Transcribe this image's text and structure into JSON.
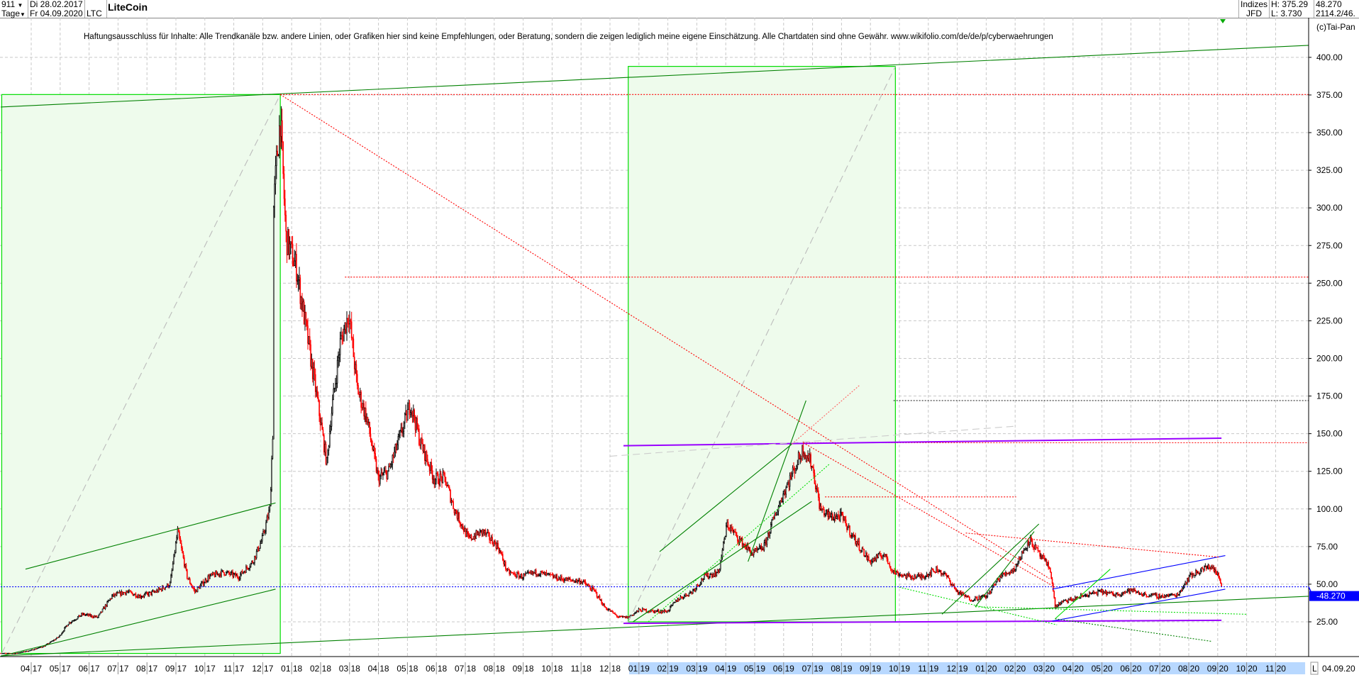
{
  "header": {
    "count": "911",
    "count_dropdown_icon": "triangle-down-icon",
    "period": "Tage",
    "period_dropdown_icon": "triangle-down-icon",
    "date_from": "Di 28.02.2017",
    "date_to": "Fr 04.09.2020",
    "symbol": "LTC",
    "title": "LiteCoin",
    "market": "Indizes",
    "source": "JFD",
    "high": "H: 375.29",
    "low": "L: 3.730",
    "last": "48.270",
    "extra": "2114.2/46.",
    "copyright": "(c)Tai-Pan"
  },
  "disclaimer": "Haftungsausschluss für Inhalte: Alle Trendkanäle bzw. andere Linien, oder Grafiken hier sind keine Empfehlungen, oder Beratung, sondern die zeigen lediglich meine eigene Einschätzung. Alle Chartdaten sind ohne Gewähr.  www.wikifolio.com/de/de/p/cyberwaehrungen",
  "axis_footer": {
    "l_button": "L",
    "last_date": "04.09.20"
  },
  "colors": {
    "up": "#000000",
    "down": "#ff0000",
    "box_fill": "#eefbec",
    "box_stroke": "#00dd00",
    "trend_green": "#008000",
    "lime": "#00e000",
    "purple": "#9900ff",
    "blue": "#0000ff",
    "red_dotted": "#ff0000",
    "last_price_bg": "#0000ff",
    "axis_band": "#b8d8ff"
  },
  "chart_data": {
    "type": "candlestick",
    "title": "LiteCoin",
    "ylim": [
      0,
      410
    ],
    "yticks": [
      "25.00",
      "50.00",
      "75.00",
      "100.00",
      "125.00",
      "150.00",
      "175.00",
      "200.00",
      "225.00",
      "250.00",
      "275.00",
      "300.00",
      "325.00",
      "350.00",
      "375.00",
      "400.00"
    ],
    "xticks": [
      "04 17",
      "05 17",
      "06 17",
      "07 17",
      "08 17",
      "09 17",
      "10 17",
      "11 17",
      "12 17",
      "01 18",
      "02 18",
      "03 18",
      "04 18",
      "05 18",
      "06 18",
      "07 18",
      "08 18",
      "09 18",
      "10 18",
      "11 18",
      "12 18",
      "01 19",
      "02 19",
      "03 19",
      "04 19",
      "05 19",
      "06 19",
      "07 19",
      "08 19",
      "09 19",
      "10 19",
      "11 19",
      "12 19",
      "01 20",
      "02 20",
      "03 20",
      "04 20",
      "05 20",
      "06 20",
      "07 20",
      "08 20",
      "09 20",
      "10 20",
      "11 20"
    ],
    "grid": true,
    "last_price_label": "48.270",
    "price_path": [
      [
        "2017-02-28",
        4.2
      ],
      [
        "2017-03-15",
        4
      ],
      [
        "2017-03-31",
        6
      ],
      [
        "2017-04-15",
        9
      ],
      [
        "2017-04-30",
        15
      ],
      [
        "2017-05-10",
        24
      ],
      [
        "2017-05-25",
        30
      ],
      [
        "2017-06-10",
        28
      ],
      [
        "2017-06-25",
        42
      ],
      [
        "2017-07-10",
        45
      ],
      [
        "2017-07-25",
        42
      ],
      [
        "2017-08-10",
        45
      ],
      [
        "2017-08-25",
        50
      ],
      [
        "2017-09-02",
        85
      ],
      [
        "2017-09-12",
        55
      ],
      [
        "2017-09-20",
        45
      ],
      [
        "2017-10-05",
        55
      ],
      [
        "2017-10-20",
        58
      ],
      [
        "2017-11-05",
        55
      ],
      [
        "2017-11-20",
        65
      ],
      [
        "2017-11-30",
        80
      ],
      [
        "2017-12-08",
        100
      ],
      [
        "2017-12-11",
        150
      ],
      [
        "2017-12-12",
        300
      ],
      [
        "2017-12-15",
        330
      ],
      [
        "2017-12-19",
        360
      ],
      [
        "2017-12-25",
        280
      ],
      [
        "2018-01-05",
        260
      ],
      [
        "2018-01-15",
        220
      ],
      [
        "2018-01-25",
        180
      ],
      [
        "2018-02-06",
        130
      ],
      [
        "2018-02-10",
        160
      ],
      [
        "2018-02-20",
        210
      ],
      [
        "2018-03-01",
        230
      ],
      [
        "2018-03-10",
        180
      ],
      [
        "2018-03-20",
        160
      ],
      [
        "2018-04-01",
        120
      ],
      [
        "2018-04-12",
        125
      ],
      [
        "2018-04-25",
        150
      ],
      [
        "2018-05-05",
        170
      ],
      [
        "2018-05-15",
        145
      ],
      [
        "2018-05-30",
        120
      ],
      [
        "2018-06-10",
        120
      ],
      [
        "2018-06-20",
        100
      ],
      [
        "2018-07-05",
        80
      ],
      [
        "2018-07-20",
        85
      ],
      [
        "2018-08-05",
        75
      ],
      [
        "2018-08-15",
        58
      ],
      [
        "2018-08-30",
        55
      ],
      [
        "2018-09-15",
        58
      ],
      [
        "2018-10-01",
        55
      ],
      [
        "2018-10-15",
        53
      ],
      [
        "2018-11-01",
        52
      ],
      [
        "2018-11-15",
        45
      ],
      [
        "2018-11-25",
        35
      ],
      [
        "2018-12-10",
        28
      ],
      [
        "2018-12-20",
        28
      ],
      [
        "2019-01-01",
        33
      ],
      [
        "2019-01-15",
        32
      ],
      [
        "2019-01-30",
        32
      ],
      [
        "2019-02-10",
        40
      ],
      [
        "2019-02-25",
        45
      ],
      [
        "2019-03-10",
        55
      ],
      [
        "2019-03-25",
        58
      ],
      [
        "2019-04-03",
        90
      ],
      [
        "2019-04-15",
        80
      ],
      [
        "2019-04-30",
        70
      ],
      [
        "2019-05-12",
        75
      ],
      [
        "2019-05-20",
        90
      ],
      [
        "2019-06-01",
        110
      ],
      [
        "2019-06-15",
        130
      ],
      [
        "2019-06-22",
        140
      ],
      [
        "2019-07-01",
        130
      ],
      [
        "2019-07-10",
        100
      ],
      [
        "2019-07-20",
        95
      ],
      [
        "2019-08-01",
        95
      ],
      [
        "2019-08-15",
        80
      ],
      [
        "2019-08-31",
        65
      ],
      [
        "2019-09-15",
        70
      ],
      [
        "2019-09-25",
        58
      ],
      [
        "2019-10-10",
        55
      ],
      [
        "2019-10-25",
        55
      ],
      [
        "2019-11-10",
        60
      ],
      [
        "2019-11-20",
        55
      ],
      [
        "2019-12-01",
        45
      ],
      [
        "2019-12-15",
        40
      ],
      [
        "2020-01-01",
        42
      ],
      [
        "2020-01-15",
        55
      ],
      [
        "2020-01-30",
        60
      ],
      [
        "2020-02-15",
        80
      ],
      [
        "2020-02-25",
        70
      ],
      [
        "2020-03-08",
        60
      ],
      [
        "2020-03-13",
        35
      ],
      [
        "2020-03-20",
        38
      ],
      [
        "2020-04-01",
        40
      ],
      [
        "2020-04-15",
        43
      ],
      [
        "2020-05-01",
        45
      ],
      [
        "2020-05-15",
        43
      ],
      [
        "2020-06-01",
        46
      ],
      [
        "2020-06-15",
        43
      ],
      [
        "2020-07-01",
        42
      ],
      [
        "2020-07-20",
        43
      ],
      [
        "2020-08-01",
        55
      ],
      [
        "2020-08-15",
        60
      ],
      [
        "2020-08-25",
        62
      ],
      [
        "2020-09-01",
        55
      ],
      [
        "2020-09-04",
        48.27
      ]
    ],
    "drawings": [
      {
        "kind": "box",
        "from": [
          "2017-03-01",
          4
        ],
        "to": [
          "2017-12-19",
          375.29
        ]
      },
      {
        "kind": "box",
        "from": [
          "2018-12-20",
          25
        ],
        "to": [
          "2019-09-27",
          394
        ]
      },
      {
        "kind": "line",
        "style": "dashed",
        "color": "#bbbbbb",
        "from": [
          "2017-03-01",
          4
        ],
        "to": [
          "2017-12-19",
          375.29
        ]
      },
      {
        "kind": "line",
        "style": "dashed",
        "color": "#bbbbbb",
        "from": [
          "2018-12-20",
          25
        ],
        "to": [
          "2019-09-27",
          394
        ]
      },
      {
        "kind": "line",
        "style": "solid",
        "color": "#008000",
        "from": [
          "2017-02-28",
          367
        ],
        "to": [
          "2020-12-05",
          408
        ]
      },
      {
        "kind": "line",
        "style": "solid",
        "color": "#008000",
        "from": [
          "2017-02-28",
          2.4
        ],
        "to": [
          "2020-12-05",
          42
        ]
      },
      {
        "kind": "line",
        "style": "dotted",
        "color": "#ff0000",
        "from": [
          "2017-12-19",
          375.29
        ],
        "to": [
          "2020-12-05",
          375.29
        ]
      },
      {
        "kind": "line",
        "style": "dotted",
        "color": "#ff0000",
        "from": [
          "2017-12-19",
          375.29
        ],
        "to": [
          "2020-03-07",
          53.7
        ]
      },
      {
        "kind": "line",
        "style": "dotted",
        "color": "#ff0000",
        "from": [
          "2018-02-25",
          254
        ],
        "to": [
          "2020-12-05",
          254
        ]
      },
      {
        "kind": "line",
        "style": "dotted",
        "color": "#333333",
        "from": [
          "2019-09-25",
          172
        ],
        "to": [
          "2020-12-05",
          172
        ]
      },
      {
        "kind": "line",
        "style": "dotted",
        "color": "#ff0000",
        "from": [
          "2019-06-22",
          144
        ],
        "to": [
          "2020-12-05",
          144
        ]
      },
      {
        "kind": "line",
        "style": "solid",
        "color": "#9900ff",
        "from": [
          "2018-12-15",
          142
        ],
        "to": [
          "2020-09-04",
          147
        ]
      },
      {
        "kind": "line",
        "style": "solid",
        "color": "#9900ff",
        "from": [
          "2018-12-15",
          24
        ],
        "to": [
          "2020-09-04",
          26
        ]
      },
      {
        "kind": "line",
        "style": "dotted",
        "color": "#0000ff",
        "from": [
          "2017-02-28",
          48.27
        ],
        "to": [
          "2020-12-05",
          48.27
        ]
      },
      {
        "kind": "line",
        "style": "solid",
        "color": "#008000",
        "from": [
          "2017-03-26",
          60
        ],
        "to": [
          "2017-12-14",
          104
        ]
      },
      {
        "kind": "line",
        "style": "solid",
        "color": "#008000",
        "from": [
          "2017-03-01",
          2.4
        ],
        "to": [
          "2017-12-14",
          46.7
        ]
      },
      {
        "kind": "line",
        "style": "solid",
        "color": "#0000ff",
        "from": [
          "2020-03-10",
          46.7
        ],
        "to": [
          "2020-09-08",
          69
        ]
      },
      {
        "kind": "line",
        "style": "solid",
        "color": "#0000ff",
        "from": [
          "2020-03-10",
          25.5
        ],
        "to": [
          "2020-09-08",
          46.7
        ]
      },
      {
        "kind": "line",
        "style": "solid",
        "color": "#008000",
        "from": [
          "2019-01-22",
          71.6
        ],
        "to": [
          "2019-06-10",
          143
        ]
      },
      {
        "kind": "line",
        "style": "solid",
        "color": "#008000",
        "from": [
          "2018-12-25",
          25
        ],
        "to": [
          "2019-07-01",
          105
        ]
      },
      {
        "kind": "line",
        "style": "solid",
        "color": "#008000",
        "from": [
          "2019-04-25",
          65
        ],
        "to": [
          "2019-06-25",
          172
        ]
      },
      {
        "kind": "line",
        "style": "dotted",
        "color": "#00dd00",
        "from": [
          "2019-01-10",
          25
        ],
        "to": [
          "2019-07-20",
          130
        ]
      },
      {
        "kind": "line",
        "style": "dotted",
        "color": "#ff6666",
        "from": [
          "2019-06-10",
          143
        ],
        "to": [
          "2019-08-20",
          182
        ]
      },
      {
        "kind": "line",
        "style": "solid",
        "color": "#008000",
        "from": [
          "2019-11-15",
          30
        ],
        "to": [
          "2020-02-25",
          90
        ]
      },
      {
        "kind": "line",
        "style": "solid",
        "color": "#008000",
        "from": [
          "2019-12-20",
          35
        ],
        "to": [
          "2020-02-20",
          85
        ]
      },
      {
        "kind": "line",
        "style": "dotted",
        "color": "#ff0000",
        "from": [
          "2019-12-10",
          84
        ],
        "to": [
          "2020-09-01",
          68
        ]
      },
      {
        "kind": "line",
        "style": "dotted",
        "color": "#ff0000",
        "from": [
          "2019-07-15",
          108
        ],
        "to": [
          "2020-02-01",
          108
        ]
      },
      {
        "kind": "line",
        "style": "dotted",
        "color": "#ff0000",
        "from": [
          "2019-06-22",
          144
        ],
        "to": [
          "2020-03-13",
          48
        ]
      },
      {
        "kind": "line",
        "style": "dotted",
        "color": "#00dd00",
        "from": [
          "2019-10-01",
          48
        ],
        "to": [
          "2020-03-15",
          23
        ]
      },
      {
        "kind": "line",
        "style": "dotted",
        "color": "#00dd00",
        "from": [
          "2019-12-20",
          35
        ],
        "to": [
          "2020-10-01",
          30
        ]
      },
      {
        "kind": "line",
        "style": "solid",
        "color": "#00dd00",
        "from": [
          "2020-03-13",
          27
        ],
        "to": [
          "2020-05-10",
          60
        ]
      },
      {
        "kind": "line",
        "style": "dotted",
        "color": "#008000",
        "from": [
          "2020-03-13",
          27
        ],
        "to": [
          "2020-08-25",
          12
        ]
      },
      {
        "kind": "line",
        "style": "dashed",
        "color": "#cccccc",
        "from": [
          "2018-12-01",
          135
        ],
        "to": [
          "2020-02-01",
          155
        ]
      }
    ]
  }
}
